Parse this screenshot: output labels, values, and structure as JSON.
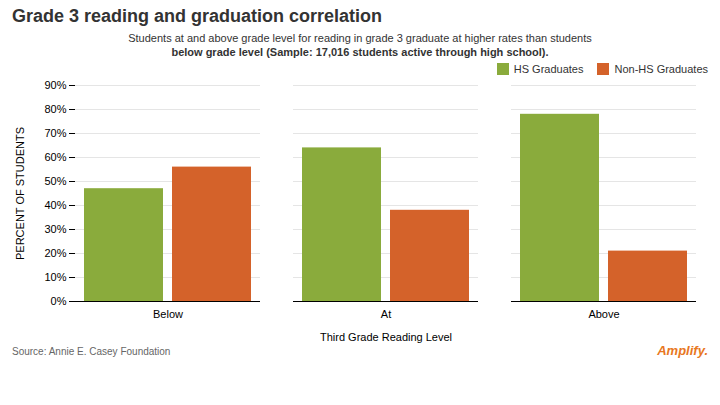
{
  "chart_data": {
    "type": "bar",
    "title": "Grade 3 reading and graduation correlation",
    "subtitle": [
      "Students at and above grade level for reading in grade 3 graduate at higher rates than students",
      "below grade level (Sample: 17,016 students active through high school)."
    ],
    "source": "Source: Annie E. Casey Foundation",
    "annotations": [
      {
        "text": "Amplify.",
        "color": "#e87722"
      }
    ],
    "xlabel": "Third Grade Reading Level",
    "ylabel": "PERCENT OF STUDENTS",
    "categories": [
      "Below",
      "At",
      "Above"
    ],
    "series": [
      {
        "name": "HS Graduates",
        "color": "#8aab3c",
        "values": [
          0.47,
          0.64,
          0.78
        ]
      },
      {
        "name": "Non-HS Graduates",
        "color": "#d4622a",
        "values": [
          0.56,
          0.38,
          0.21
        ]
      }
    ],
    "ylim": [
      0,
      0.9
    ],
    "yticks": [
      {
        "value": 0.0,
        "label": "0%"
      },
      {
        "value": 0.1,
        "label": "10%"
      },
      {
        "value": 0.2,
        "label": "20%"
      },
      {
        "value": 0.3,
        "label": "30%"
      },
      {
        "value": 0.4,
        "label": "40%"
      },
      {
        "value": 0.5,
        "label": "50%"
      },
      {
        "value": 0.6,
        "label": "60%"
      },
      {
        "value": 0.7,
        "label": "70%"
      },
      {
        "value": 0.8,
        "label": "80%"
      },
      {
        "value": 0.9,
        "label": "90%"
      }
    ],
    "grid": true,
    "legend": "upper right"
  }
}
